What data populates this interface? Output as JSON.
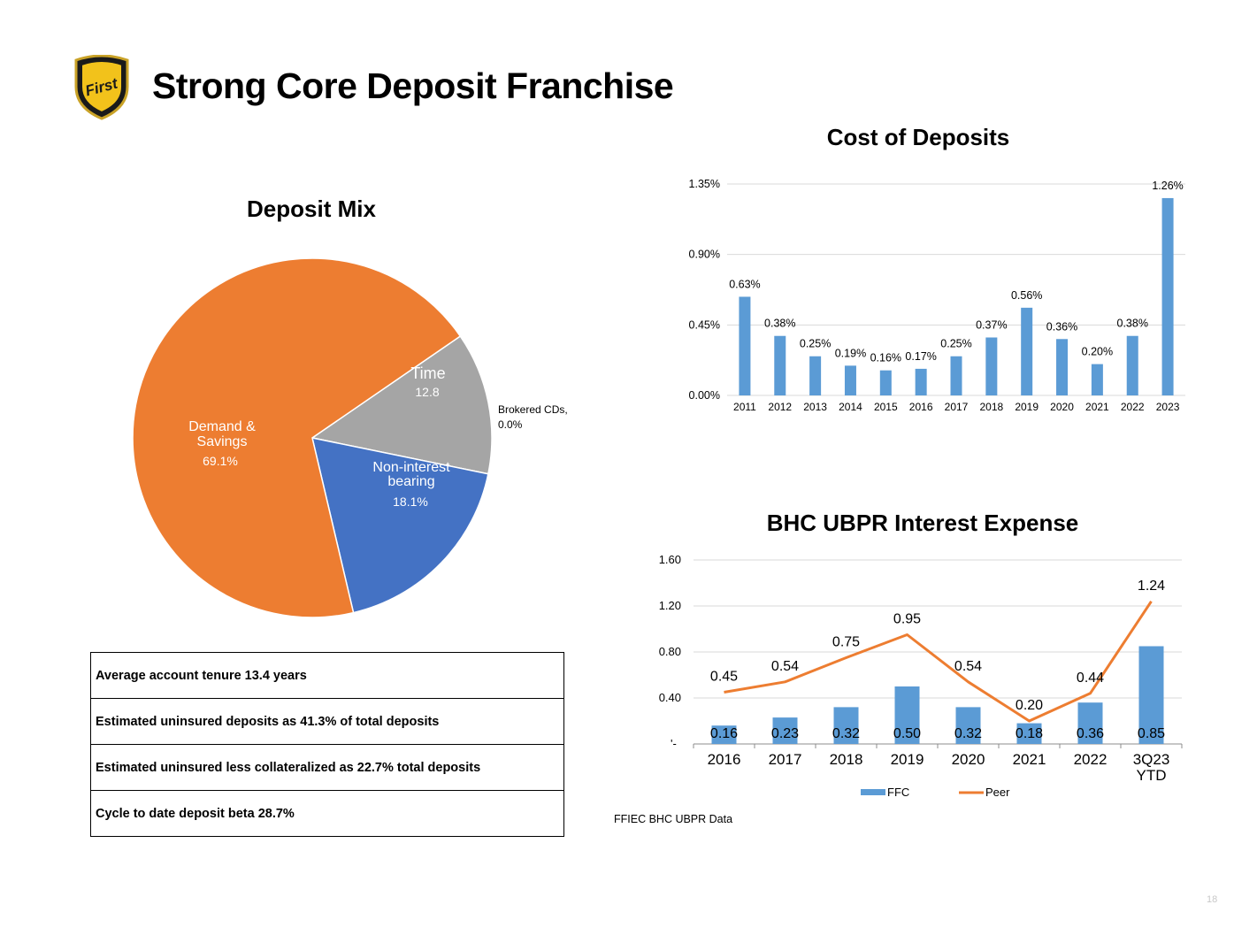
{
  "header": {
    "title": "Strong Core Deposit Franchise",
    "logo_text": "First"
  },
  "deposit_mix": {
    "title": "Deposit Mix",
    "labels": [
      {
        "name": "Time",
        "value": "12.8"
      },
      {
        "name": "Brokered CDs,",
        "value": "0.0%"
      },
      {
        "name": "Non-interest bearing",
        "line1": "Non-interest",
        "line2": "bearing",
        "value": "18.1%"
      },
      {
        "name": "Demand & Savings",
        "line1": "Demand &",
        "line2": "Savings",
        "value": "69.1%"
      }
    ]
  },
  "info_table": {
    "rows": [
      "Average account tenure 13.4 years",
      "Estimated uninsured deposits as 41.3% of total deposits",
      "Estimated uninsured less collateralized as 22.7% total deposits",
      "Cycle to date deposit beta 28.7%"
    ]
  },
  "cost_title": "Cost of Deposits",
  "ubpr_title": "BHC UBPR Interest Expense",
  "footer": {
    "source": "FFIEC BHC UBPR Data",
    "page_number": "18"
  },
  "chart_data": [
    {
      "type": "pie",
      "title": "Deposit Mix",
      "categories": [
        "Time",
        "Brokered CDs",
        "Non-interest bearing",
        "Demand & Savings"
      ],
      "values": [
        12.8,
        0.0,
        18.1,
        69.1
      ],
      "colors": [
        "#A5A5A5",
        "#FFC000",
        "#4472C4",
        "#ED7D31"
      ]
    },
    {
      "type": "bar",
      "title": "Cost of Deposits",
      "categories": [
        "2011",
        "2012",
        "2013",
        "2014",
        "2015",
        "2016",
        "2017",
        "2018",
        "2019",
        "2020",
        "2021",
        "2022",
        "2023"
      ],
      "values": [
        0.63,
        0.38,
        0.25,
        0.19,
        0.16,
        0.17,
        0.25,
        0.37,
        0.56,
        0.36,
        0.2,
        0.38,
        1.26
      ],
      "value_labels": [
        "0.63%",
        "0.38%",
        "0.25%",
        "0.19%",
        "0.16%",
        "0.17%",
        "0.25%",
        "0.37%",
        "0.56%",
        "0.36%",
        "0.20%",
        "0.38%",
        "1.26%"
      ],
      "yticks": [
        "0.00%",
        "0.45%",
        "0.90%",
        "1.35%"
      ],
      "ylim": [
        0,
        1.35
      ],
      "color": "#5B9BD5"
    },
    {
      "type": "bar",
      "title": "BHC UBPR Interest Expense",
      "categories": [
        "2016",
        "2017",
        "2018",
        "2019",
        "2020",
        "2021",
        "2022",
        "3Q23 YTD"
      ],
      "category_lines": [
        [
          "2016"
        ],
        [
          "2017"
        ],
        [
          "2018"
        ],
        [
          "2019"
        ],
        [
          "2020"
        ],
        [
          "2021"
        ],
        [
          "2022"
        ],
        [
          "3Q23",
          "YTD"
        ]
      ],
      "series": [
        {
          "name": "FFC",
          "type": "bar",
          "values": [
            0.16,
            0.23,
            0.32,
            0.5,
            0.32,
            0.18,
            0.36,
            0.85
          ],
          "labels": [
            "0.16",
            "0.23",
            "0.32",
            "0.50",
            "0.32",
            "0.18",
            "0.36",
            "0.85"
          ],
          "color": "#5B9BD5"
        },
        {
          "name": "Peer",
          "type": "line",
          "values": [
            0.45,
            0.54,
            0.75,
            0.95,
            0.54,
            0.2,
            0.44,
            1.24
          ],
          "labels": [
            "0.45",
            "0.54",
            "0.75",
            "0.95",
            "0.54",
            "0.20",
            "0.44",
            "1.24"
          ],
          "color": "#ED7D31"
        }
      ],
      "yticks": [
        "'-",
        "0.40",
        "0.80",
        "1.20",
        "1.60"
      ],
      "ylim": [
        0,
        1.6
      ],
      "legend": "bottom"
    }
  ]
}
